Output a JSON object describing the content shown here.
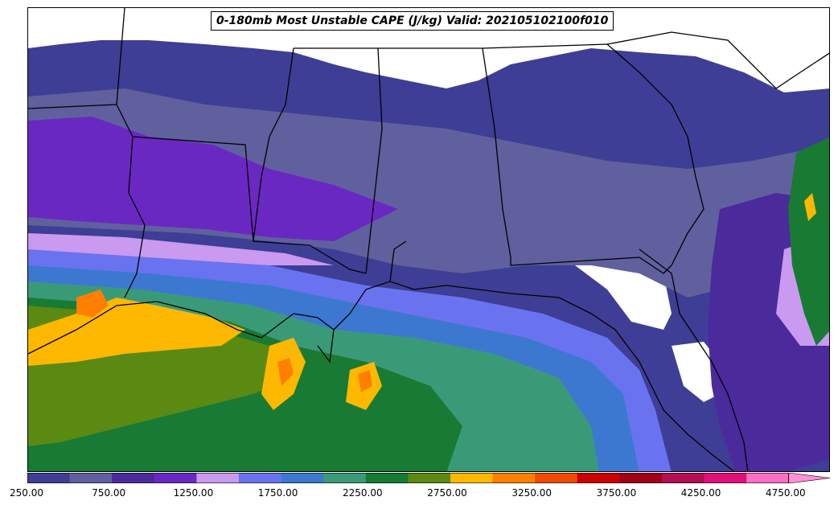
{
  "title": "0-180mb Most Unstable CAPE (J/kg) Valid: 202105102100f010",
  "colorbar": {
    "colors": [
      "#3e3e96",
      "#60609e",
      "#4b2a9c",
      "#6a28c2",
      "#c99af0",
      "#6a73ef",
      "#3d78d0",
      "#3a9a78",
      "#197a33",
      "#5a8a12",
      "#ffb800",
      "#ff8000",
      "#ef4a00",
      "#cc0000",
      "#a00018",
      "#b01050",
      "#e0107a",
      "#ff70c0"
    ],
    "arrow_color": "#ff90d8",
    "tick_labels": [
      "250.00",
      "750.00",
      "1250.00",
      "1750.00",
      "2250.00",
      "2750.00",
      "3250.00",
      "3750.00",
      "4250.00",
      "4750.00"
    ]
  },
  "map_colors": {
    "land_white": "#ffffff",
    "border": "#000000"
  }
}
